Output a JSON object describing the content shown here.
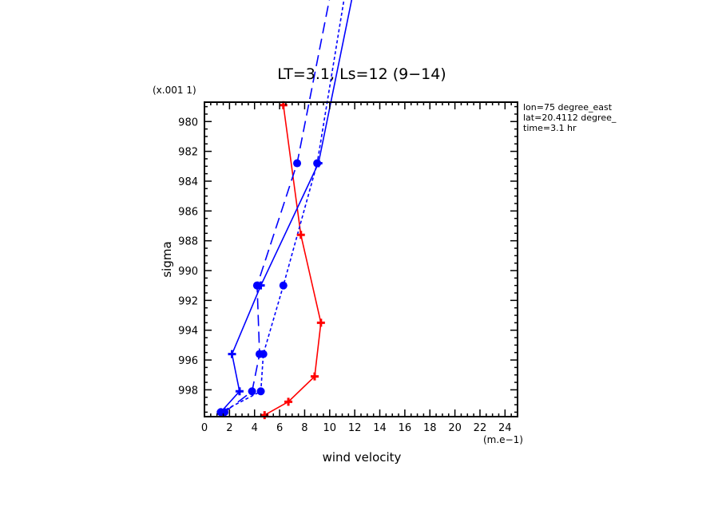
{
  "chart_data": {
    "type": "line",
    "title": "LT=3.1, Ls=12 (9−14)",
    "xlabel": "wind velocity",
    "ylabel": "sigma",
    "x_unit": "(m.e−1)",
    "y_unit": "(x.001 1)",
    "xlim": [
      0,
      25
    ],
    "ylim": [
      999.8,
      978.7
    ],
    "x_ticks": [
      0,
      2,
      4,
      6,
      8,
      10,
      12,
      14,
      16,
      18,
      20,
      22,
      24
    ],
    "y_ticks": [
      980,
      982,
      984,
      986,
      988,
      990,
      992,
      994,
      996,
      998
    ],
    "annotations": [
      "lon=75 degree_east",
      "lat=20.4112 degree_",
      "time=3.1 hr"
    ],
    "series": [
      {
        "color": "#ff0000",
        "dash": "solid",
        "marker": "plus",
        "x": [
          4.8,
          6.7,
          8.8,
          9.3,
          7.7,
          6.3
        ],
        "y": [
          999.7,
          998.8,
          997.1,
          993.5,
          987.6,
          978.9
        ],
        "points": [
          [
            4.8,
            999.7
          ],
          [
            6.7,
            998.8
          ],
          [
            8.8,
            997.1
          ],
          [
            9.3,
            993.5
          ],
          [
            7.7,
            987.6
          ],
          [
            6.3,
            978.9
          ]
        ]
      },
      {
        "color": "#0000ff",
        "dash": "solid",
        "marker": "plus",
        "x": [
          1.3,
          2.8,
          2.2,
          4.5,
          9.1,
          12.2
        ],
        "y": [
          999.5,
          998.1,
          995.6,
          991.0,
          982.8,
          970.0
        ],
        "points": [
          [
            1.3,
            999.5
          ],
          [
            2.8,
            998.1
          ],
          [
            2.2,
            995.6
          ],
          [
            4.5,
            991.0
          ],
          [
            9.1,
            982.8
          ],
          [
            12.2,
            970.0
          ]
        ]
      },
      {
        "color": "#0000ff",
        "dash": "long-dash",
        "marker": "circle",
        "x": [
          1.6,
          3.8,
          4.4,
          4.2,
          7.4,
          10.4
        ],
        "y": [
          999.5,
          998.1,
          995.6,
          991.0,
          982.8,
          970.0
        ],
        "points": [
          [
            1.6,
            999.5
          ],
          [
            3.8,
            998.1
          ],
          [
            4.4,
            995.6
          ],
          [
            4.2,
            991.0
          ],
          [
            7.4,
            982.8
          ],
          [
            10.4,
            970.0
          ]
        ]
      },
      {
        "color": "#0000ff",
        "dash": "short-dash",
        "marker": "circle",
        "x": [
          1.3,
          4.5,
          4.7,
          6.3,
          9.0,
          11.5
        ],
        "y": [
          999.5,
          998.1,
          995.6,
          991.0,
          982.8,
          970.0
        ],
        "points": [
          [
            1.3,
            999.5
          ],
          [
            4.5,
            998.1
          ],
          [
            4.7,
            995.6
          ],
          [
            6.3,
            991.0
          ],
          [
            9.0,
            982.8
          ],
          [
            11.5,
            970.0
          ]
        ]
      }
    ]
  }
}
